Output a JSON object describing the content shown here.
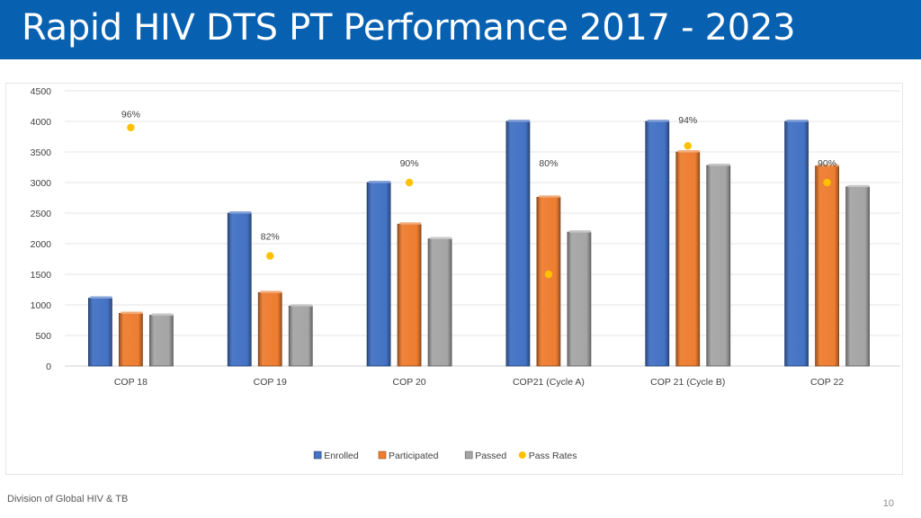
{
  "slide": {
    "title": "Rapid HIV DTS PT Performance 2017 - 2023",
    "footer": "Division of Global HIV & TB",
    "page_number": "10"
  },
  "chart_data": {
    "type": "bar",
    "title": "",
    "xlabel": "",
    "ylabel": "",
    "ylim": [
      0,
      4500
    ],
    "yticks": [
      0,
      500,
      1000,
      1500,
      2000,
      2500,
      3000,
      3500,
      4000,
      4500
    ],
    "grid": true,
    "legend_position": "bottom",
    "categories": [
      "COP 18",
      "COP 19",
      "COP 20",
      "COP21 (Cycle A)",
      "COP 21 (Cycle B)",
      "COP 22"
    ],
    "series": [
      {
        "name": "Enrolled",
        "kind": "bar",
        "color": "#4472c4",
        "values": [
          1110,
          2500,
          3000,
          4000,
          4000,
          4000
        ]
      },
      {
        "name": "Participated",
        "kind": "bar",
        "color": "#ed7d31",
        "values": [
          860,
          1200,
          2320,
          2760,
          3500,
          3270
        ]
      },
      {
        "name": "Passed",
        "kind": "bar",
        "color": "#a5a5a5",
        "values": [
          830,
          980,
          2080,
          2190,
          3280,
          2930
        ]
      },
      {
        "name": "Pass Rates",
        "kind": "scatter",
        "color": "#ffc000",
        "values": [
          96,
          82,
          90,
          80,
          94,
          90
        ],
        "labels": [
          "96%",
          "82%",
          "90%",
          "80%",
          "94%",
          "90%"
        ],
        "plotted_at": [
          3900,
          1800,
          3000,
          1500,
          3600,
          3000
        ]
      }
    ]
  }
}
